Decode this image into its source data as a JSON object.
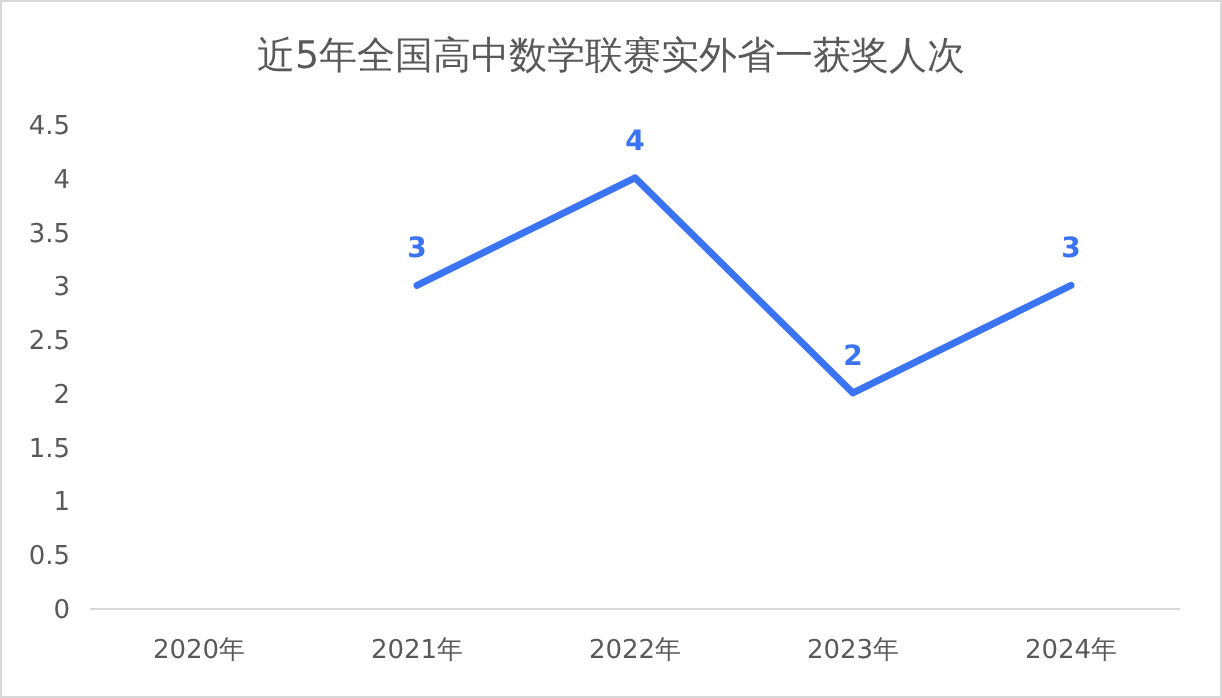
{
  "chart_data": {
    "type": "line",
    "title": "近5年全国高中数学联赛实外省一获奖人次",
    "categories": [
      "2020年",
      "2021年",
      "2022年",
      "2023年",
      "2024年"
    ],
    "series": [
      {
        "color": "#3b74f2",
        "values": [
          null,
          3,
          4,
          2,
          3
        ]
      }
    ],
    "ylim": [
      0,
      4.5
    ],
    "yticks": [
      0,
      0.5,
      1,
      1.5,
      2,
      2.5,
      3,
      3.5,
      4,
      4.5
    ],
    "data_labels": true,
    "grid": false,
    "marker": "none",
    "line_style": "solid"
  }
}
